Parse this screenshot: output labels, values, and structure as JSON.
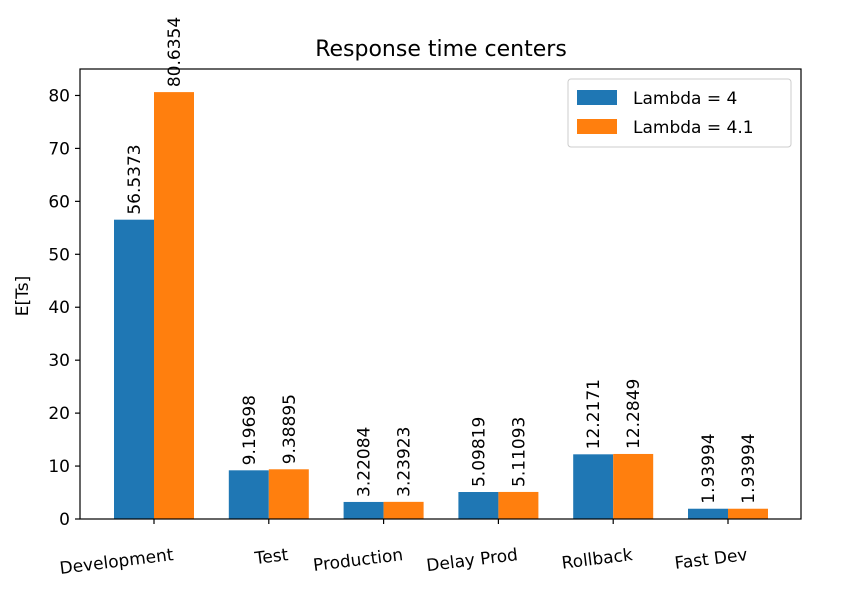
{
  "chart_data": {
    "type": "bar",
    "title": "Response time centers",
    "xlabel": "",
    "ylabel": "E[Ts]",
    "ylim": [
      0,
      85
    ],
    "yticks": [
      0,
      10,
      20,
      30,
      40,
      50,
      60,
      70,
      80
    ],
    "categories": [
      "Development",
      "Test",
      "Production",
      "Delay Prod",
      "Rollback",
      "Fast Dev"
    ],
    "series": [
      {
        "name": "Lambda = 4",
        "color": "#1f77b4",
        "values": [
          56.5373,
          9.19698,
          3.22084,
          5.09819,
          12.2171,
          1.93994
        ],
        "labels": [
          "56.5373",
          "9.19698",
          "3.22084",
          "5.09819",
          "12.2171",
          "1.93994"
        ]
      },
      {
        "name": "Lambda = 4.1",
        "color": "#ff7f0e",
        "values": [
          80.6354,
          9.38895,
          3.23923,
          5.11093,
          12.2849,
          1.93994
        ],
        "labels": [
          "80.6354",
          "9.38895",
          "3.23923",
          "5.11093",
          "12.2849",
          "1.93994"
        ]
      }
    ],
    "grid": false,
    "legend_position": "top-right",
    "tick_label_rotation": "slight"
  }
}
